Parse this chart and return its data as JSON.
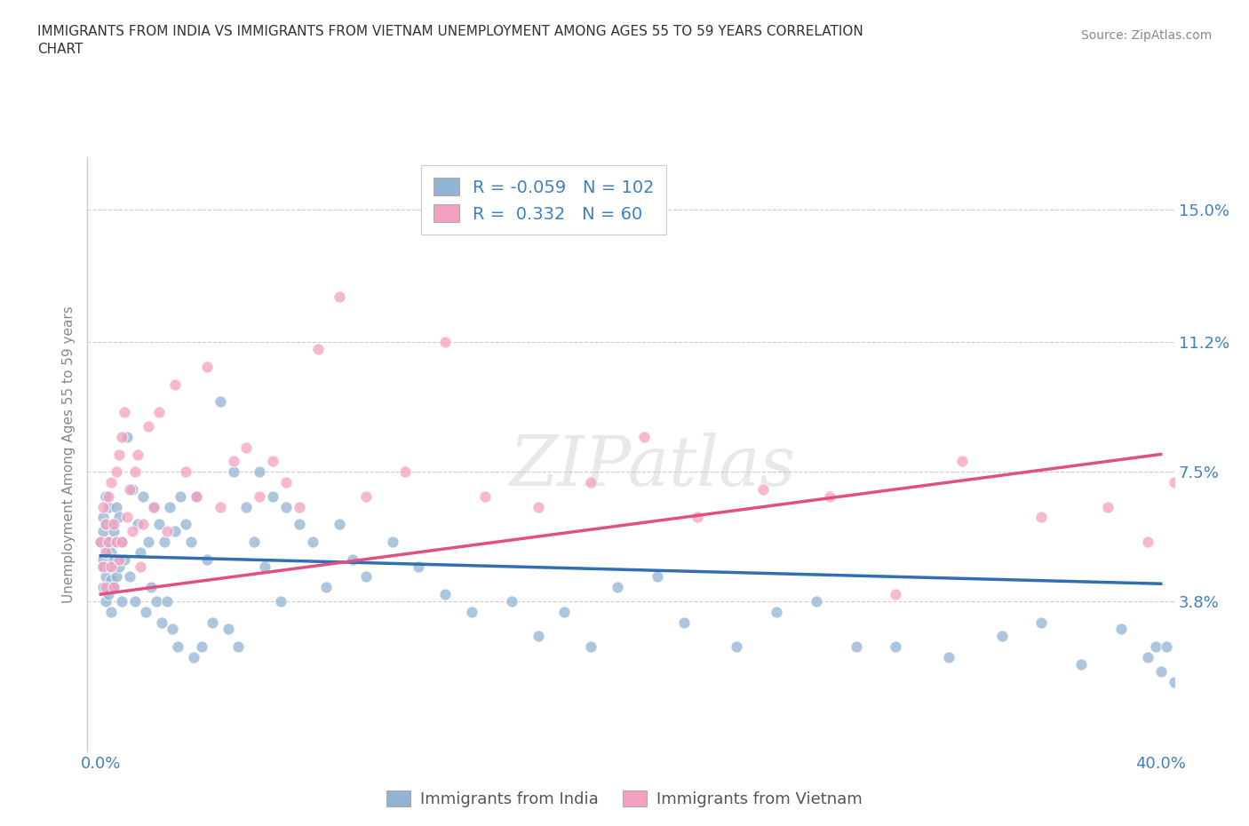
{
  "title": "IMMIGRANTS FROM INDIA VS IMMIGRANTS FROM VIETNAM UNEMPLOYMENT AMONG AGES 55 TO 59 YEARS CORRELATION\nCHART",
  "source_text": "Source: ZipAtlas.com",
  "ylabel": "Unemployment Among Ages 55 to 59 years",
  "xlim": [
    -0.005,
    0.405
  ],
  "ylim": [
    -0.005,
    0.165
  ],
  "yticks": [
    0.038,
    0.075,
    0.112,
    0.15
  ],
  "ytick_labels": [
    "3.8%",
    "7.5%",
    "11.2%",
    "15.0%"
  ],
  "xtick_ends": [
    0.0,
    0.4
  ],
  "xtick_end_labels": [
    "0.0%",
    "40.0%"
  ],
  "india_color": "#92b4d4",
  "vietnam_color": "#f4a0c0",
  "india_line_color": "#3070b0",
  "vietnam_line_color": "#e05080",
  "india_R": -0.059,
  "india_N": 102,
  "vietnam_R": 0.332,
  "vietnam_N": 60,
  "india_line_x0": 0.0,
  "india_line_y0": 0.051,
  "india_line_x1": 0.4,
  "india_line_y1": 0.043,
  "vietnam_line_x0": 0.0,
  "vietnam_line_y0": 0.04,
  "vietnam_line_x1": 0.4,
  "vietnam_line_y1": 0.08,
  "india_scatter_x": [
    0.0,
    0.001,
    0.001,
    0.001,
    0.001,
    0.001,
    0.002,
    0.002,
    0.002,
    0.002,
    0.002,
    0.003,
    0.003,
    0.003,
    0.003,
    0.004,
    0.004,
    0.004,
    0.004,
    0.005,
    0.005,
    0.005,
    0.006,
    0.006,
    0.006,
    0.007,
    0.007,
    0.008,
    0.008,
    0.009,
    0.01,
    0.011,
    0.012,
    0.013,
    0.014,
    0.015,
    0.016,
    0.017,
    0.018,
    0.019,
    0.02,
    0.021,
    0.022,
    0.023,
    0.024,
    0.025,
    0.026,
    0.027,
    0.028,
    0.029,
    0.03,
    0.032,
    0.034,
    0.035,
    0.036,
    0.038,
    0.04,
    0.042,
    0.045,
    0.048,
    0.05,
    0.052,
    0.055,
    0.058,
    0.06,
    0.062,
    0.065,
    0.068,
    0.07,
    0.075,
    0.08,
    0.085,
    0.09,
    0.095,
    0.1,
    0.11,
    0.12,
    0.13,
    0.14,
    0.155,
    0.165,
    0.175,
    0.185,
    0.195,
    0.21,
    0.22,
    0.24,
    0.255,
    0.27,
    0.285,
    0.3,
    0.32,
    0.34,
    0.355,
    0.37,
    0.385,
    0.395,
    0.398,
    0.4,
    0.402,
    0.405,
    0.408
  ],
  "india_scatter_y": [
    0.055,
    0.062,
    0.05,
    0.058,
    0.048,
    0.042,
    0.06,
    0.053,
    0.045,
    0.068,
    0.038,
    0.065,
    0.055,
    0.048,
    0.04,
    0.06,
    0.052,
    0.044,
    0.035,
    0.058,
    0.05,
    0.042,
    0.065,
    0.055,
    0.045,
    0.062,
    0.048,
    0.055,
    0.038,
    0.05,
    0.085,
    0.045,
    0.07,
    0.038,
    0.06,
    0.052,
    0.068,
    0.035,
    0.055,
    0.042,
    0.065,
    0.038,
    0.06,
    0.032,
    0.055,
    0.038,
    0.065,
    0.03,
    0.058,
    0.025,
    0.068,
    0.06,
    0.055,
    0.022,
    0.068,
    0.025,
    0.05,
    0.032,
    0.095,
    0.03,
    0.075,
    0.025,
    0.065,
    0.055,
    0.075,
    0.048,
    0.068,
    0.038,
    0.065,
    0.06,
    0.055,
    0.042,
    0.06,
    0.05,
    0.045,
    0.055,
    0.048,
    0.04,
    0.035,
    0.038,
    0.028,
    0.035,
    0.025,
    0.042,
    0.045,
    0.032,
    0.025,
    0.035,
    0.038,
    0.025,
    0.025,
    0.022,
    0.028,
    0.032,
    0.02,
    0.03,
    0.022,
    0.025,
    0.018,
    0.025,
    0.015,
    0.012
  ],
  "vietnam_scatter_x": [
    0.0,
    0.001,
    0.001,
    0.002,
    0.002,
    0.002,
    0.003,
    0.003,
    0.004,
    0.004,
    0.005,
    0.005,
    0.006,
    0.006,
    0.007,
    0.007,
    0.008,
    0.008,
    0.009,
    0.01,
    0.011,
    0.012,
    0.013,
    0.014,
    0.015,
    0.016,
    0.018,
    0.02,
    0.022,
    0.025,
    0.028,
    0.032,
    0.036,
    0.04,
    0.045,
    0.05,
    0.055,
    0.06,
    0.065,
    0.07,
    0.075,
    0.082,
    0.09,
    0.1,
    0.115,
    0.13,
    0.145,
    0.165,
    0.185,
    0.205,
    0.225,
    0.25,
    0.275,
    0.3,
    0.325,
    0.355,
    0.38,
    0.395,
    0.405,
    0.408
  ],
  "vietnam_scatter_y": [
    0.055,
    0.065,
    0.048,
    0.06,
    0.052,
    0.042,
    0.068,
    0.055,
    0.072,
    0.048,
    0.06,
    0.042,
    0.075,
    0.055,
    0.08,
    0.05,
    0.085,
    0.055,
    0.092,
    0.062,
    0.07,
    0.058,
    0.075,
    0.08,
    0.048,
    0.06,
    0.088,
    0.065,
    0.092,
    0.058,
    0.1,
    0.075,
    0.068,
    0.105,
    0.065,
    0.078,
    0.082,
    0.068,
    0.078,
    0.072,
    0.065,
    0.11,
    0.125,
    0.068,
    0.075,
    0.112,
    0.068,
    0.065,
    0.072,
    0.085,
    0.062,
    0.07,
    0.068,
    0.04,
    0.078,
    0.062,
    0.065,
    0.055,
    0.072,
    0.06
  ],
  "grid_color": "#cccccc",
  "background_color": "#ffffff",
  "tick_color": "#4080c0",
  "axis_label_color": "#888888",
  "figsize": [
    14.06,
    9.3
  ],
  "dpi": 100
}
